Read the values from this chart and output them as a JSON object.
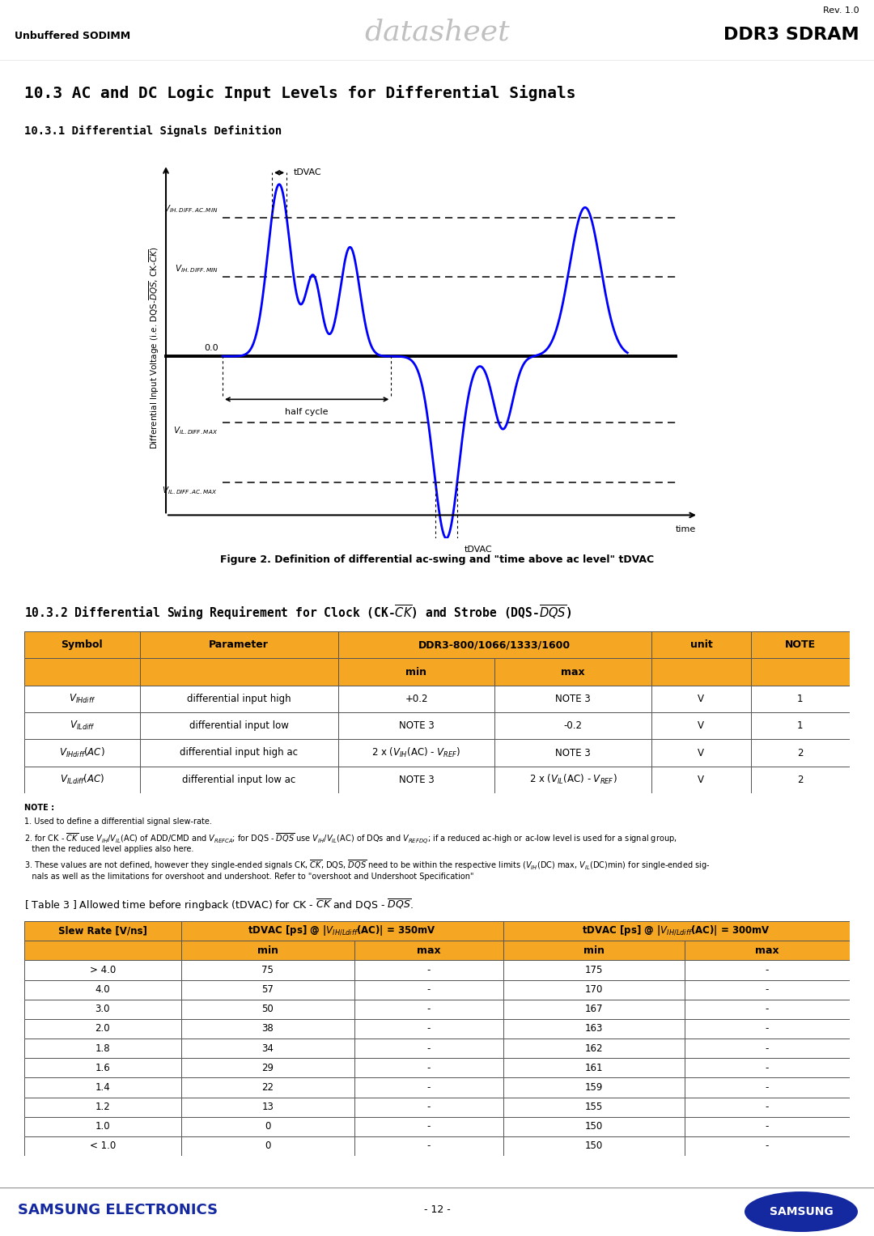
{
  "header_bg": "#e0e0e0",
  "left_label": "Unbuffered SODIMM",
  "center_label": "datasheet",
  "right_top": "Rev. 1.0",
  "right_label": "DDR3 SDRAM",
  "section_title": "10.3 AC and DC Logic Input Levels for Differential Signals",
  "subsection1": "10.3.1 Differential Signals Definition",
  "figure_caption": "Figure 2. Definition of differential ac-swing and \"time above ac level\" tDVAC",
  "subsection2_text": "10.3.2 Differential Swing Requirement for Clock (CK-̅CK̅) and Strobe (DQS-̅DQS̅)",
  "orange": "#F5A623",
  "samsung_blue": "#1428A0",
  "table1_rows": [
    [
      "V_IHdiff",
      "differential input high",
      "+0.2",
      "NOTE 3",
      "V",
      "1"
    ],
    [
      "V_ILdiff",
      "differential input low",
      "NOTE 3",
      "-0.2",
      "V",
      "1"
    ],
    [
      "V_IHdiff_AC",
      "differential input high ac",
      "2 x (V_IH(AC) - V_REF)",
      "NOTE 3",
      "V",
      "2"
    ],
    [
      "V_ILdiff_AC",
      "differential input low ac",
      "NOTE 3",
      "2 x (V_IL(AC) - V_REF)",
      "V",
      "2"
    ]
  ],
  "table2_rows": [
    [
      "> 4.0",
      "75",
      "-",
      "175",
      "-"
    ],
    [
      "4.0",
      "57",
      "-",
      "170",
      "-"
    ],
    [
      "3.0",
      "50",
      "-",
      "167",
      "-"
    ],
    [
      "2.0",
      "38",
      "-",
      "163",
      "-"
    ],
    [
      "1.8",
      "34",
      "-",
      "162",
      "-"
    ],
    [
      "1.6",
      "29",
      "-",
      "161",
      "-"
    ],
    [
      "1.4",
      "22",
      "-",
      "159",
      "-"
    ],
    [
      "1.2",
      "13",
      "-",
      "155",
      "-"
    ],
    [
      "1.0",
      "0",
      "-",
      "150",
      "-"
    ],
    [
      "< 1.0",
      "0",
      "-",
      "150",
      "-"
    ]
  ]
}
